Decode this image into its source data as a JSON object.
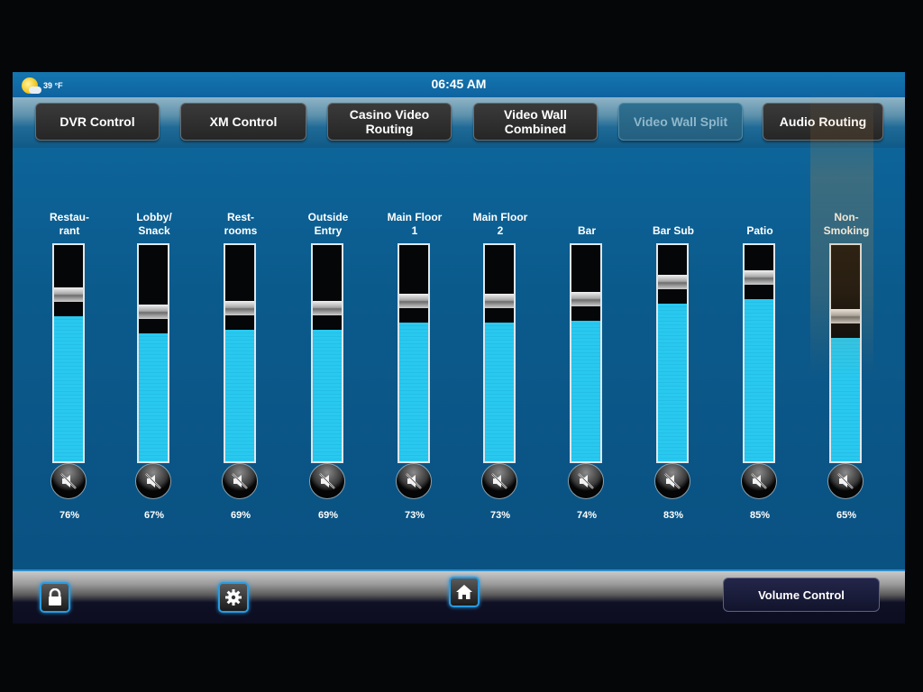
{
  "status_bar": {
    "weather_icon": "partly-sunny-icon",
    "temperature": "39 °F",
    "time": "06:45 AM"
  },
  "nav_buttons": [
    {
      "label": "DVR Control",
      "state": "normal"
    },
    {
      "label": "XM Control",
      "state": "normal"
    },
    {
      "label": "Casino Video Routing",
      "state": "normal"
    },
    {
      "label": "Video Wall Combined",
      "state": "normal"
    },
    {
      "label": "Video Wall Split",
      "state": "disabled"
    },
    {
      "label": "Audio Routing",
      "state": "normal"
    }
  ],
  "channels": [
    {
      "label": "Restau-\nrant",
      "volume": 76,
      "volume_text": "76%",
      "muted_icon": "speaker-muted-icon"
    },
    {
      "label": "Lobby/\nSnack",
      "volume": 67,
      "volume_text": "67%",
      "muted_icon": "speaker-muted-icon"
    },
    {
      "label": "Rest-\nrooms",
      "volume": 69,
      "volume_text": "69%",
      "muted_icon": "speaker-muted-icon"
    },
    {
      "label": "Outside\nEntry",
      "volume": 69,
      "volume_text": "69%",
      "muted_icon": "speaker-muted-icon"
    },
    {
      "label": "Main Floor\n1",
      "volume": 73,
      "volume_text": "73%",
      "muted_icon": "speaker-muted-icon"
    },
    {
      "label": "Main Floor\n2",
      "volume": 73,
      "volume_text": "73%",
      "muted_icon": "speaker-muted-icon"
    },
    {
      "label": "Bar",
      "volume": 74,
      "volume_text": "74%",
      "muted_icon": "speaker-muted-icon"
    },
    {
      "label": "Bar Sub",
      "volume": 83,
      "volume_text": "83%",
      "muted_icon": "speaker-muted-icon"
    },
    {
      "label": "Patio",
      "volume": 85,
      "volume_text": "85%",
      "muted_icon": "speaker-muted-icon"
    },
    {
      "label": "Non-\nSmoking",
      "volume": 65,
      "volume_text": "65%",
      "muted_icon": "speaker-muted-icon"
    }
  ],
  "bottom_bar": {
    "lock_icon": "lock-icon",
    "settings_icon": "gear-icon",
    "home_icon": "home-icon",
    "page_label": "Volume Control"
  },
  "colors": {
    "background": "#0b5a8c",
    "fader_fill": "#29c8ef",
    "accent_glow": "#2a9be0"
  }
}
